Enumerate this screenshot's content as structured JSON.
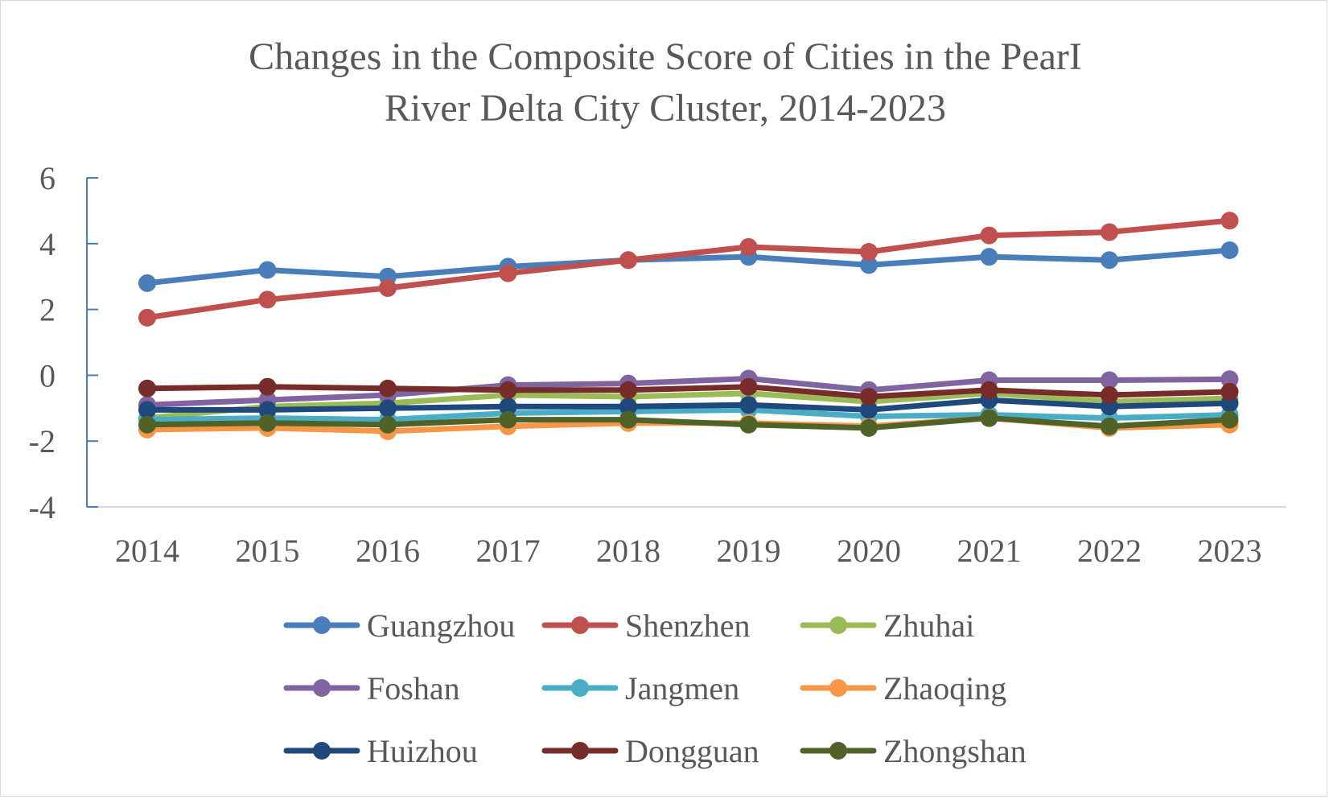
{
  "chart_data": {
    "type": "line",
    "title_lines": [
      "Changes in the Composite Score of Cities in the PearI",
      "River Delta City Cluster,  2014-2023"
    ],
    "categories": [
      "2014",
      "2015",
      "2016",
      "2017",
      "2018",
      "2019",
      "2020",
      "2021",
      "2022",
      "2023"
    ],
    "ylim": [
      -4,
      6
    ],
    "yticks": [
      "6",
      "4",
      "2",
      "0",
      "-2",
      "-4"
    ],
    "ytick_values": [
      6,
      4,
      2,
      0,
      -2,
      -4
    ],
    "grid": false,
    "legend_position": "bottom",
    "series": [
      {
        "name": "Guangzhou",
        "color": "#4a7ebb",
        "values": [
          2.8,
          3.2,
          3.0,
          3.3,
          3.5,
          3.6,
          3.35,
          3.6,
          3.5,
          3.8
        ]
      },
      {
        "name": "Shenzhen",
        "color": "#c0504d",
        "values": [
          1.75,
          2.3,
          2.65,
          3.1,
          3.5,
          3.9,
          3.75,
          4.25,
          4.35,
          4.7
        ]
      },
      {
        "name": "Zhuhai",
        "color": "#9bbb59",
        "values": [
          -1.3,
          -0.95,
          -0.85,
          -0.6,
          -0.65,
          -0.55,
          -0.8,
          -0.55,
          -0.8,
          -0.7
        ]
      },
      {
        "name": "Foshan",
        "color": "#8064a2",
        "values": [
          -0.9,
          -0.75,
          -0.6,
          -0.3,
          -0.25,
          -0.1,
          -0.45,
          -0.15,
          -0.15,
          -0.12
        ]
      },
      {
        "name": "Jangmen",
        "color": "#4bacc6",
        "values": [
          -1.35,
          -1.3,
          -1.35,
          -1.15,
          -1.1,
          -1.05,
          -1.25,
          -1.2,
          -1.3,
          -1.2
        ]
      },
      {
        "name": "Zhaoqing",
        "color": "#f79646",
        "values": [
          -1.65,
          -1.6,
          -1.7,
          -1.55,
          -1.45,
          -1.45,
          -1.55,
          -1.3,
          -1.6,
          -1.5
        ]
      },
      {
        "name": "Huizhou",
        "color": "#1f497d",
        "values": [
          -1.05,
          -1.05,
          -1.0,
          -0.95,
          -0.95,
          -0.9,
          -1.05,
          -0.75,
          -0.95,
          -0.85
        ]
      },
      {
        "name": "Dongguan",
        "color": "#772c2a",
        "values": [
          -0.4,
          -0.35,
          -0.4,
          -0.45,
          -0.45,
          -0.35,
          -0.65,
          -0.45,
          -0.6,
          -0.5
        ]
      },
      {
        "name": "Zhongshan",
        "color": "#4f6228",
        "values": [
          -1.5,
          -1.45,
          -1.5,
          -1.35,
          -1.35,
          -1.5,
          -1.6,
          -1.3,
          -1.55,
          -1.35
        ]
      }
    ]
  }
}
